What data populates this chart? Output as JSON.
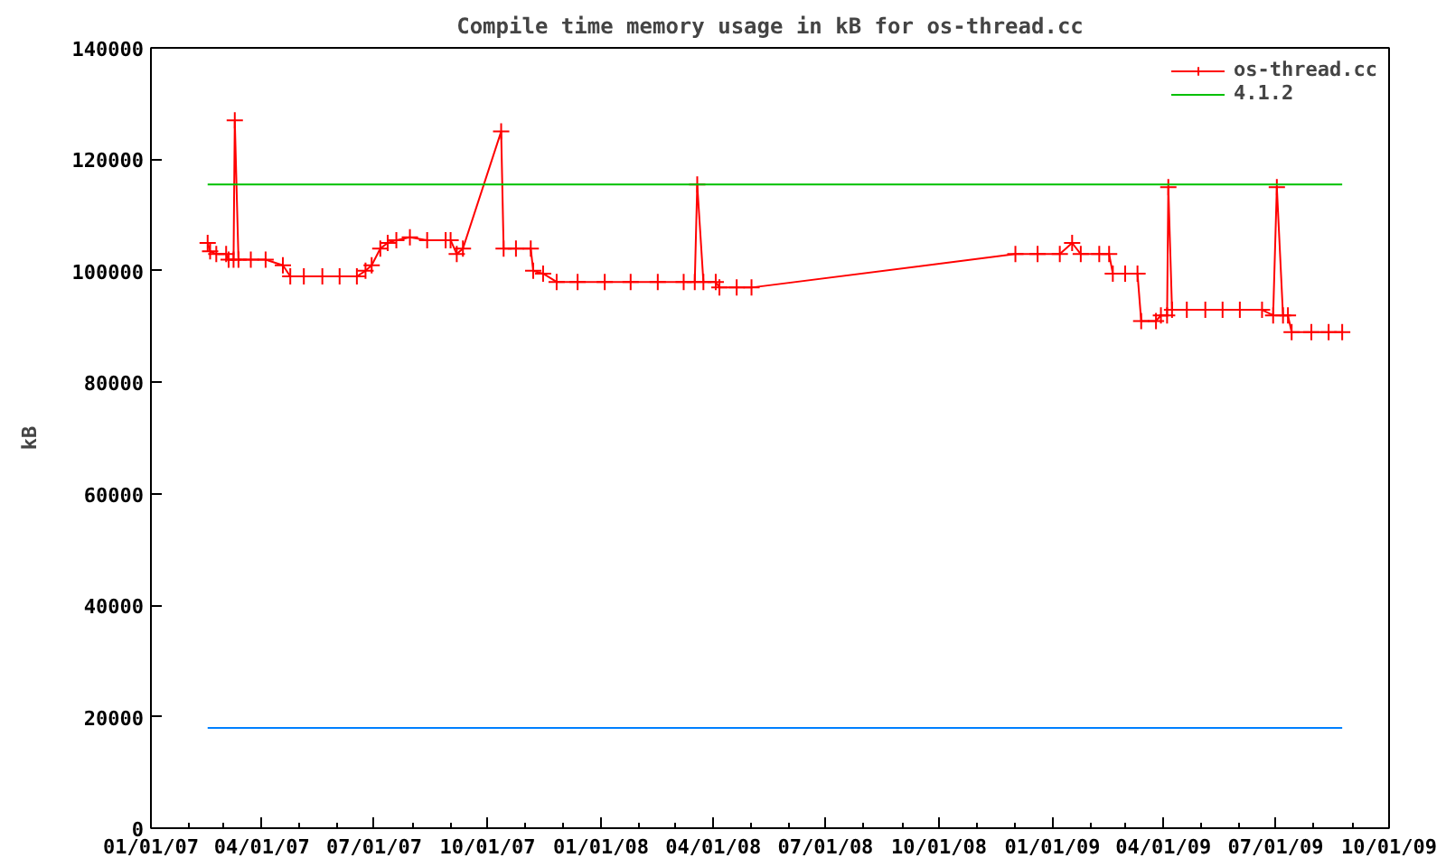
{
  "chart_data": {
    "type": "line",
    "title": "Compile time memory usage in kB for os-thread.cc",
    "ylabel": "kB",
    "xlim": [
      "2007-01-01",
      "2009-10-01"
    ],
    "xticks": [
      {
        "value": "2007-01-01",
        "label": "01/01/07"
      },
      {
        "value": "2007-04-01",
        "label": "04/01/07"
      },
      {
        "value": "2007-07-01",
        "label": "07/01/07"
      },
      {
        "value": "2007-10-01",
        "label": "10/01/07"
      },
      {
        "value": "2008-01-01",
        "label": "01/01/08"
      },
      {
        "value": "2008-04-01",
        "label": "04/01/08"
      },
      {
        "value": "2008-07-01",
        "label": "07/01/08"
      },
      {
        "value": "2008-10-01",
        "label": "10/01/08"
      },
      {
        "value": "2009-01-01",
        "label": "01/01/09"
      },
      {
        "value": "2009-04-01",
        "label": "04/01/09"
      },
      {
        "value": "2009-07-01",
        "label": "07/01/09"
      },
      {
        "value": "2009-10-01",
        "label": "10/01/09"
      }
    ],
    "ylim": [
      0,
      140000
    ],
    "yticks": [
      0,
      20000,
      40000,
      60000,
      80000,
      100000,
      120000,
      140000
    ],
    "legend": "top right",
    "series": [
      {
        "name": "os-thread.cc",
        "color": "#ff0000",
        "marker": "cross",
        "x": [
          "2007-02-16",
          "2007-02-18",
          "2007-02-23",
          "2007-03-03",
          "2007-03-05",
          "2007-03-09",
          "2007-03-10",
          "2007-03-13",
          "2007-03-23",
          "2007-04-04",
          "2007-04-18",
          "2007-04-24",
          "2007-05-05",
          "2007-05-20",
          "2007-06-03",
          "2007-06-17",
          "2007-06-24",
          "2007-06-29",
          "2007-07-06",
          "2007-07-12",
          "2007-07-19",
          "2007-07-30",
          "2007-08-13",
          "2007-08-28",
          "2007-09-01",
          "2007-09-06",
          "2007-09-11",
          "2007-10-12",
          "2007-10-14",
          "2007-10-24",
          "2007-11-05",
          "2007-11-07",
          "2007-11-15",
          "2007-11-26",
          "2007-12-13",
          "2008-01-04",
          "2008-01-25",
          "2008-02-16",
          "2008-03-08",
          "2008-03-17",
          "2008-03-19",
          "2008-03-24",
          "2008-04-03",
          "2008-04-06",
          "2008-04-20",
          "2008-05-02",
          "2008-12-02",
          "2008-12-20",
          "2009-01-07",
          "2009-01-17",
          "2009-01-24",
          "2009-02-08",
          "2009-02-16",
          "2009-02-19",
          "2009-03-01",
          "2009-03-11",
          "2009-03-14",
          "2009-03-26",
          "2009-03-30",
          "2009-04-04",
          "2009-04-05",
          "2009-04-08",
          "2009-04-20",
          "2009-05-05",
          "2009-05-19",
          "2009-06-02",
          "2009-06-20",
          "2009-06-29",
          "2009-07-02",
          "2009-07-07",
          "2009-07-11",
          "2009-07-14",
          "2009-07-30",
          "2009-08-13",
          "2009-08-24"
        ],
        "values": [
          105000,
          103500,
          103000,
          103000,
          102000,
          102000,
          127000,
          102000,
          102000,
          102000,
          101000,
          99000,
          99000,
          99000,
          99000,
          99000,
          100000,
          101000,
          104000,
          105000,
          105500,
          106000,
          105500,
          105500,
          105500,
          103000,
          104000,
          125000,
          104000,
          104000,
          104000,
          100000,
          99500,
          98000,
          98000,
          98000,
          98000,
          98000,
          98000,
          98000,
          115500,
          98000,
          98000,
          97000,
          97000,
          97000,
          103000,
          103000,
          103000,
          105000,
          103000,
          103000,
          103000,
          99500,
          99500,
          99500,
          91000,
          91000,
          92000,
          92000,
          115000,
          93000,
          93000,
          93000,
          93000,
          93000,
          93000,
          92000,
          115000,
          92000,
          92000,
          89000,
          89000,
          89000,
          89000
        ]
      },
      {
        "name": "4.1.2",
        "color": "#00c000",
        "marker": "none",
        "x": [
          "2007-02-16",
          "2009-08-24"
        ],
        "values": [
          115500,
          115500
        ]
      },
      {
        "color": "#0080ff",
        "marker": "none",
        "x": [
          "2007-02-16",
          "2009-08-24"
        ],
        "values": [
          18000,
          18000
        ]
      }
    ]
  }
}
